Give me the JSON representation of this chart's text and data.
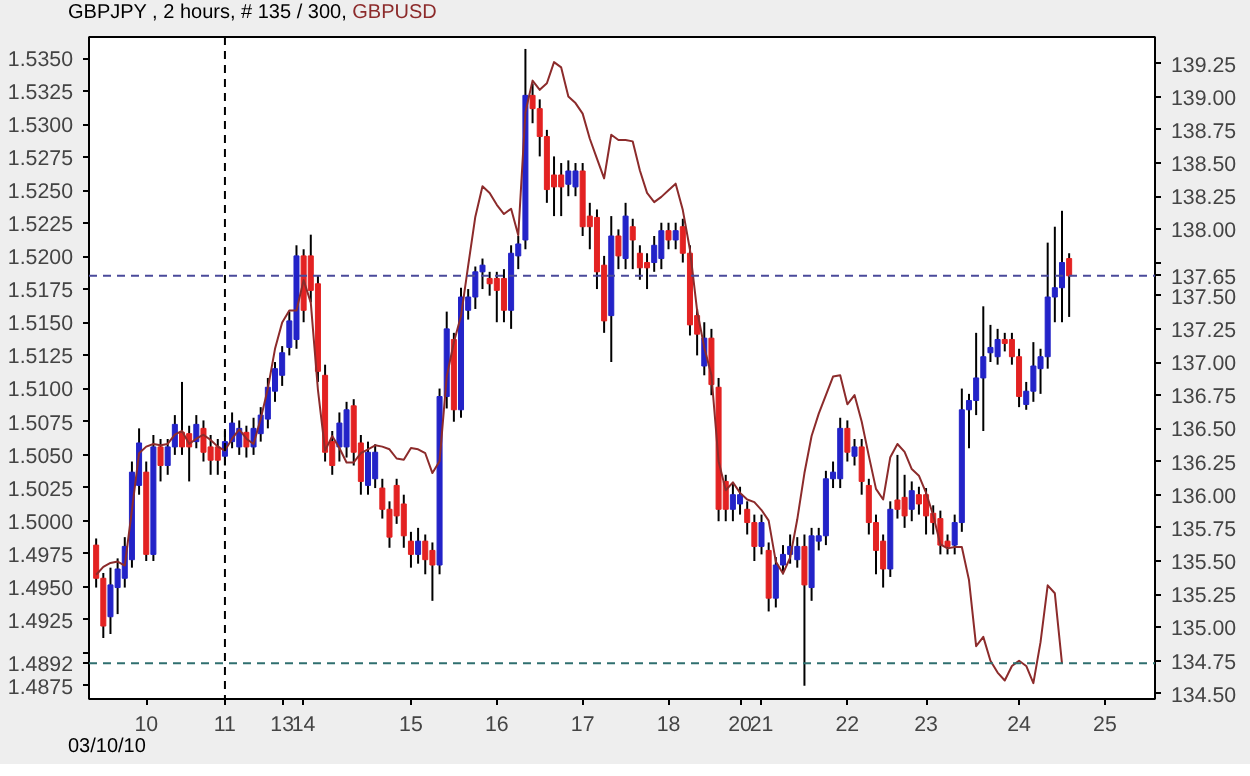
{
  "chart_data": {
    "type": "candlestick",
    "title": "GBPJPY , 2 hours, # 135 / 300,",
    "annotations": [
      "03/10/10"
    ],
    "categories": [
      null,
      null,
      null,
      null,
      null,
      null,
      null,
      "10",
      null,
      null,
      null,
      null,
      null,
      null,
      null,
      null,
      null,
      null,
      "11",
      null,
      null,
      null,
      null,
      null,
      null,
      null,
      "13",
      null,
      null,
      "14",
      null,
      null,
      null,
      null,
      null,
      null,
      null,
      null,
      null,
      null,
      null,
      null,
      null,
      null,
      "15",
      null,
      null,
      null,
      null,
      null,
      null,
      null,
      null,
      null,
      null,
      null,
      "16",
      null,
      null,
      null,
      null,
      null,
      null,
      null,
      null,
      null,
      null,
      null,
      "17",
      null,
      null,
      null,
      null,
      null,
      null,
      null,
      null,
      null,
      null,
      null,
      "18",
      null,
      null,
      null,
      null,
      null,
      null,
      null,
      null,
      null,
      "20",
      null,
      null,
      "21",
      null,
      null,
      null,
      null,
      null,
      null,
      null,
      null,
      null,
      null,
      null,
      "22",
      null,
      null,
      null,
      null,
      null,
      null,
      null,
      null,
      null,
      null,
      "23",
      null,
      null,
      null,
      null,
      null,
      null,
      null,
      null,
      null,
      null,
      null,
      null,
      "24",
      null,
      null,
      null,
      null,
      null,
      null,
      null,
      null,
      null,
      null,
      null,
      "25",
      null,
      null,
      null,
      null,
      null,
      null
    ],
    "ylim": [
      1.4865,
      1.5366
    ],
    "yticks": [
      {
        "value": 1.4875,
        "label": "1.4875"
      },
      {
        "value": 1.49,
        "label": null
      },
      {
        "value": 1.4925,
        "label": "1.4925"
      },
      {
        "value": 1.495,
        "label": "1.4950"
      },
      {
        "value": 1.4975,
        "label": "1.4975"
      },
      {
        "value": 1.5,
        "label": "1.5000"
      },
      {
        "value": 1.5025,
        "label": "1.5025"
      },
      {
        "value": 1.505,
        "label": "1.5050"
      },
      {
        "value": 1.5075,
        "label": "1.5075"
      },
      {
        "value": 1.51,
        "label": "1.5100"
      },
      {
        "value": 1.5125,
        "label": "1.5125"
      },
      {
        "value": 1.515,
        "label": "1.5150"
      },
      {
        "value": 1.5175,
        "label": "1.5175"
      },
      {
        "value": 1.52,
        "label": "1.5200"
      },
      {
        "value": 1.5225,
        "label": "1.5225"
      },
      {
        "value": 1.525,
        "label": "1.5250"
      },
      {
        "value": 1.5275,
        "label": "1.5275"
      },
      {
        "value": 1.53,
        "label": "1.5300"
      },
      {
        "value": 1.5325,
        "label": "1.5325"
      },
      {
        "value": 1.535,
        "label": "1.5350"
      }
    ],
    "y2lim": [
      134.46,
      139.45
    ],
    "y2ticks": [
      {
        "value": 134.5,
        "label": "134.50"
      },
      {
        "value": 134.75,
        "label": "134.75"
      },
      {
        "value": 135,
        "label": "135.00"
      },
      {
        "value": 135.25,
        "label": "135.25"
      },
      {
        "value": 135.5,
        "label": "135.50"
      },
      {
        "value": 135.75,
        "label": "135.75"
      },
      {
        "value": 136,
        "label": "136.00"
      },
      {
        "value": 136.25,
        "label": "136.25"
      },
      {
        "value": 136.5,
        "label": "136.50"
      },
      {
        "value": 136.75,
        "label": "136.75"
      },
      {
        "value": 137,
        "label": "137.00"
      },
      {
        "value": 137.25,
        "label": "137.25"
      },
      {
        "value": 137.5,
        "label": "137.50"
      },
      {
        "value": 137.75,
        "label": null
      },
      {
        "value": 138,
        "label": "138.00"
      },
      {
        "value": 138.25,
        "label": "138.25"
      },
      {
        "value": 138.5,
        "label": "138.50"
      },
      {
        "value": 138.75,
        "label": "138.75"
      },
      {
        "value": 139,
        "label": "139.00"
      },
      {
        "value": 139.25,
        "label": "139.25"
      }
    ],
    "ref_lines": [
      {
        "axis": "x",
        "value": "11",
        "color": "#000000",
        "line_style": "dashed"
      },
      {
        "axis": "y2",
        "value": 137.65,
        "label": "137.65",
        "color": "#4a4a9a",
        "line_style": "dashed"
      },
      {
        "axis": "y",
        "value": 1.4892,
        "label": "1.4892",
        "color": "#2f6f6f",
        "line_style": "dashed"
      }
    ],
    "series": [
      {
        "axis": "y2",
        "color": "#000000",
        "colors": [
          "#e32222",
          "#e32222",
          "#2323c8",
          "#2323c8",
          "#2323c8",
          "#2323c8",
          "#2323c8",
          "#e32222",
          "#2323c8",
          "#e32222",
          "#2323c8",
          "#2323c8",
          "#e32222",
          "#e32222",
          "#2323c8",
          "#e32222",
          "#e32222",
          "#e32222",
          "#2323c8",
          "#2323c8",
          "#2323c8",
          "#e32222",
          "#2323c8",
          "#2323c8",
          "#2323c8",
          "#2323c8",
          "#2323c8",
          "#2323c8",
          "#2323c8",
          "#e32222",
          "#e32222",
          "#e32222",
          "#e32222",
          "#e32222",
          "#2323c8",
          "#2323c8",
          "#e32222",
          "#e32222",
          "#2323c8",
          "#2323c8",
          "#e32222",
          "#e32222",
          "#e32222",
          "#e32222",
          "#e32222",
          "#2323c8",
          "#e32222",
          "#e32222",
          "#2323c8",
          "#2323c8",
          "#e32222",
          "#2323c8",
          "#2323c8",
          "#2323c8",
          "#2323c8",
          "#e32222",
          "#e32222",
          "#e32222",
          "#2323c8",
          "#2323c8",
          "#2323c8",
          "#e32222",
          "#e32222",
          "#e32222",
          "#e32222",
          "#e32222",
          "#2323c8",
          "#2323c8",
          "#e32222",
          "#e32222",
          "#e32222",
          "#e32222",
          "#2323c8",
          "#e32222",
          "#2323c8",
          "#e32222",
          "#e32222",
          "#e32222",
          "#2323c8",
          "#2323c8",
          "#e32222",
          "#2323c8",
          "#e32222",
          "#e32222",
          "#e32222",
          "#2323c8",
          "#e32222",
          "#e32222",
          "#e32222",
          "#2323c8",
          "#2323c8",
          "#e32222",
          "#e32222",
          "#2323c8",
          "#e32222",
          "#2323c8",
          "#2323c8",
          "#2323c8",
          "#2323c8",
          "#e32222",
          "#2323c8",
          "#2323c8",
          "#2323c8",
          "#2323c8",
          "#2323c8",
          "#e32222",
          "#2323c8",
          "#e32222",
          "#e32222",
          "#e32222",
          "#e32222",
          "#2323c8",
          "#e32222",
          "#e32222",
          "#2323c8",
          "#e32222",
          "#e32222",
          "#e32222",
          "#e32222",
          "#e32222",
          "#2323c8",
          "#2323c8",
          "#2323c8",
          "#2323c8",
          "#2323c8",
          "#2323c8",
          "#2323c8",
          "#e32222",
          "#e32222",
          "#e32222",
          "#2323c8",
          "#2323c8",
          "#2323c8",
          "#2323c8",
          "#2323c8",
          "#2323c8",
          "#e32222",
          null,
          null,
          null,
          null,
          null,
          null,
          null,
          null,
          null,
          null,
          null
        ],
        "ohlc": [
          [
            135.62,
            135.67,
            135.3,
            135.37
          ],
          [
            135.37,
            135.41,
            134.92,
            135.01
          ],
          [
            135.08,
            135.45,
            134.95,
            135.32
          ],
          [
            135.3,
            135.52,
            135.1,
            135.44
          ],
          [
            135.37,
            135.68,
            135.3,
            135.61
          ],
          [
            135.51,
            136.25,
            135.45,
            136.17
          ],
          [
            136.07,
            136.5,
            136.0,
            136.39
          ],
          [
            136.17,
            136.25,
            135.5,
            135.55
          ],
          [
            135.55,
            136.45,
            135.5,
            136.36
          ],
          [
            136.36,
            136.42,
            136.1,
            136.22
          ],
          [
            136.22,
            136.42,
            136.15,
            136.36
          ],
          [
            136.36,
            136.6,
            136.3,
            136.53
          ],
          [
            136.47,
            136.85,
            136.3,
            136.36
          ],
          [
            136.46,
            136.52,
            136.1,
            136.36
          ],
          [
            136.4,
            136.6,
            136.35,
            136.53
          ],
          [
            136.5,
            136.56,
            136.25,
            136.32
          ],
          [
            136.36,
            136.45,
            136.15,
            136.26
          ],
          [
            136.36,
            136.42,
            136.15,
            136.26
          ],
          [
            136.29,
            136.48,
            136.22,
            136.4
          ],
          [
            136.4,
            136.62,
            136.35,
            136.54
          ],
          [
            136.36,
            136.56,
            136.3,
            136.5
          ],
          [
            136.47,
            136.52,
            136.28,
            136.36
          ],
          [
            136.36,
            136.58,
            136.3,
            136.5
          ],
          [
            136.46,
            136.66,
            136.4,
            136.6
          ],
          [
            136.57,
            136.88,
            136.5,
            136.81
          ],
          [
            136.78,
            137.0,
            136.7,
            136.95
          ],
          [
            136.9,
            137.12,
            136.82,
            137.07
          ],
          [
            137.11,
            137.38,
            137.05,
            137.31
          ],
          [
            137.17,
            137.88,
            137.1,
            137.8
          ],
          [
            137.8,
            137.85,
            137.3,
            137.39
          ],
          [
            137.8,
            137.96,
            137.45,
            137.54
          ],
          [
            137.59,
            137.65,
            136.85,
            136.93
          ],
          [
            136.9,
            136.98,
            136.25,
            136.32
          ],
          [
            136.4,
            136.48,
            136.15,
            136.22
          ],
          [
            136.36,
            136.62,
            136.25,
            136.54
          ],
          [
            136.36,
            136.7,
            136.28,
            136.64
          ],
          [
            136.67,
            136.72,
            136.22,
            136.32
          ],
          [
            136.39,
            136.45,
            136.0,
            136.1
          ],
          [
            136.07,
            136.4,
            136.0,
            136.32
          ],
          [
            136.12,
            136.38,
            136.05,
            136.32
          ],
          [
            136.05,
            136.12,
            135.82,
            135.89
          ],
          [
            135.89,
            135.95,
            135.6,
            135.68
          ],
          [
            136.07,
            136.12,
            135.78,
            135.84
          ],
          [
            135.93,
            136.0,
            135.6,
            135.69
          ],
          [
            135.65,
            135.72,
            135.45,
            135.55
          ],
          [
            135.55,
            135.75,
            135.48,
            135.65
          ],
          [
            135.65,
            135.7,
            135.4,
            135.51
          ],
          [
            135.58,
            135.64,
            135.2,
            135.47
          ],
          [
            135.47,
            136.8,
            135.4,
            136.74
          ],
          [
            136.74,
            137.38,
            136.65,
            137.25
          ],
          [
            137.17,
            137.22,
            136.55,
            136.64
          ],
          [
            136.64,
            137.56,
            136.58,
            137.49
          ],
          [
            137.39,
            137.55,
            137.32,
            137.49
          ],
          [
            137.49,
            137.72,
            137.4,
            137.68
          ],
          [
            137.68,
            137.78,
            137.55,
            137.73
          ],
          [
            137.63,
            137.68,
            137.5,
            137.59
          ],
          [
            137.63,
            137.68,
            137.3,
            137.54
          ],
          [
            137.63,
            137.7,
            137.3,
            137.39
          ],
          [
            137.39,
            137.88,
            137.25,
            137.82
          ],
          [
            137.8,
            137.95,
            137.7,
            137.89
          ],
          [
            137.92,
            139.36,
            137.85,
            139.01
          ],
          [
            139.01,
            139.1,
            138.8,
            138.91
          ],
          [
            138.91,
            138.98,
            138.55,
            138.7
          ],
          [
            138.7,
            138.75,
            138.2,
            138.3
          ],
          [
            138.41,
            138.55,
            138.1,
            138.32
          ],
          [
            138.41,
            138.5,
            138.1,
            138.32
          ],
          [
            138.34,
            138.52,
            138.25,
            138.44
          ],
          [
            138.32,
            138.5,
            138.25,
            138.44
          ],
          [
            138.44,
            138.5,
            137.95,
            138.02
          ],
          [
            138.1,
            138.2,
            137.85,
            138.02
          ],
          [
            138.09,
            138.15,
            137.55,
            137.68
          ],
          [
            137.73,
            137.8,
            137.22,
            137.31
          ],
          [
            137.35,
            138.1,
            137.0,
            137.95
          ],
          [
            137.95,
            138.0,
            137.7,
            137.8
          ],
          [
            137.78,
            138.2,
            137.7,
            138.1
          ],
          [
            138.02,
            138.08,
            137.7,
            137.92
          ],
          [
            137.82,
            137.88,
            137.62,
            137.71
          ],
          [
            137.75,
            137.82,
            137.55,
            137.71
          ],
          [
            137.75,
            137.95,
            137.68,
            137.88
          ],
          [
            137.78,
            138.05,
            137.7,
            137.99
          ],
          [
            137.99,
            138.05,
            137.85,
            137.92
          ],
          [
            137.92,
            138.05,
            137.85,
            137.99
          ],
          [
            138.02,
            138.08,
            137.75,
            137.82
          ],
          [
            137.82,
            137.88,
            137.2,
            137.28
          ],
          [
            137.35,
            137.4,
            137.05,
            137.21
          ],
          [
            136.97,
            137.3,
            136.9,
            137.18
          ],
          [
            137.18,
            137.25,
            136.75,
            136.83
          ],
          [
            136.81,
            136.88,
            135.8,
            135.89
          ],
          [
            136.1,
            136.15,
            135.8,
            135.89
          ],
          [
            135.89,
            136.08,
            135.8,
            136.0
          ],
          [
            135.93,
            136.06,
            135.85,
            136.0
          ],
          [
            135.89,
            135.95,
            135.7,
            135.79
          ],
          [
            135.79,
            135.85,
            135.5,
            135.61
          ],
          [
            135.61,
            135.85,
            135.55,
            135.79
          ],
          [
            135.58,
            135.64,
            135.12,
            135.22
          ],
          [
            135.22,
            135.53,
            135.15,
            135.47
          ],
          [
            135.47,
            135.62,
            135.4,
            135.55
          ],
          [
            135.55,
            135.7,
            135.48,
            135.61
          ],
          [
            135.51,
            135.68,
            135.45,
            135.61
          ],
          [
            135.61,
            135.7,
            134.56,
            135.32
          ],
          [
            135.3,
            135.75,
            135.2,
            135.69
          ],
          [
            135.65,
            135.75,
            135.58,
            135.69
          ],
          [
            135.69,
            136.18,
            135.62,
            136.12
          ],
          [
            136.12,
            136.25,
            136.05,
            136.17
          ],
          [
            136.12,
            136.58,
            136.05,
            136.5
          ],
          [
            136.5,
            136.56,
            136.25,
            136.32
          ],
          [
            136.29,
            136.42,
            136.22,
            136.36
          ],
          [
            136.36,
            136.42,
            136.0,
            136.1
          ],
          [
            136.07,
            136.12,
            135.7,
            135.79
          ],
          [
            135.79,
            135.85,
            135.4,
            135.58
          ],
          [
            135.65,
            135.7,
            135.3,
            135.44
          ],
          [
            135.44,
            135.95,
            135.38,
            135.89
          ],
          [
            135.96,
            136.3,
            135.82,
            135.89
          ],
          [
            135.98,
            136.15,
            135.75,
            135.84
          ],
          [
            135.89,
            136.1,
            135.8,
            136.03
          ],
          [
            136.0,
            136.06,
            135.85,
            135.93
          ],
          [
            136.0,
            136.05,
            135.7,
            135.84
          ],
          [
            135.86,
            135.92,
            135.7,
            135.79
          ],
          [
            135.82,
            135.88,
            135.55,
            135.62
          ],
          [
            135.65,
            135.7,
            135.55,
            135.61
          ],
          [
            135.62,
            135.85,
            135.55,
            135.79
          ],
          [
            135.79,
            136.8,
            135.72,
            136.64
          ],
          [
            136.64,
            136.76,
            136.35,
            136.71
          ],
          [
            136.71,
            137.22,
            136.6,
            136.88
          ],
          [
            136.88,
            137.42,
            136.48,
            137.04
          ],
          [
            137.07,
            137.28,
            137.0,
            137.11
          ],
          [
            137.04,
            137.25,
            136.98,
            137.17
          ],
          [
            137.17,
            137.22,
            137.08,
            137.14
          ],
          [
            137.17,
            137.22,
            136.98,
            137.04
          ],
          [
            137.04,
            137.1,
            136.66,
            136.74
          ],
          [
            136.68,
            136.85,
            136.64,
            136.78
          ],
          [
            136.78,
            137.15,
            136.7,
            136.97
          ],
          [
            136.95,
            137.1,
            136.76,
            137.04
          ],
          [
            137.04,
            137.9,
            136.95,
            137.49
          ],
          [
            137.49,
            138.02,
            137.3,
            137.56
          ],
          [
            137.56,
            138.14,
            137.3,
            137.75
          ],
          [
            137.78,
            137.82,
            137.34,
            137.65
          ],
          null,
          null,
          null,
          null,
          null,
          null,
          null,
          null,
          null,
          null,
          null
        ]
      },
      {
        "type": "line",
        "name": "GBPUSD",
        "color": "#8c2b2b",
        "values": [
          1.4959,
          1.4965,
          1.4968,
          1.4969,
          1.4966,
          1.5008,
          1.5051,
          1.5056,
          1.5058,
          1.5057,
          1.5058,
          1.5065,
          1.5068,
          1.5058,
          1.5062,
          1.5065,
          1.5061,
          1.5056,
          1.5053,
          1.5062,
          1.5069,
          1.5062,
          1.5058,
          1.5077,
          1.51,
          1.513,
          1.515,
          1.5159,
          1.5159,
          1.5182,
          1.5165,
          1.5099,
          1.5053,
          1.5064,
          1.5055,
          1.5044,
          1.5044,
          1.5051,
          1.5054,
          1.5057,
          1.5056,
          1.5054,
          1.5047,
          1.5046,
          1.5055,
          1.5054,
          1.5051,
          1.5036,
          1.5045,
          1.5109,
          1.5135,
          1.5155,
          1.5193,
          1.523,
          1.5253,
          1.5248,
          1.5239,
          1.5232,
          1.5236,
          1.5216,
          1.5309,
          1.5333,
          1.5326,
          1.5331,
          1.5347,
          1.5343,
          1.5321,
          1.5316,
          1.5308,
          1.5289,
          1.5274,
          1.5259,
          1.5292,
          1.5288,
          1.5288,
          1.5287,
          1.5265,
          1.5248,
          1.5241,
          1.5245,
          1.525,
          1.5255,
          1.5235,
          1.5205,
          1.5159,
          1.5131,
          1.511,
          1.5045,
          1.5023,
          1.5029,
          1.5021,
          1.5016,
          1.5014,
          1.5008,
          1.5,
          1.4969,
          1.496,
          1.4972,
          1.5001,
          1.5036,
          1.5064,
          1.5081,
          1.5095,
          1.5109,
          1.511,
          1.5088,
          1.5095,
          1.5075,
          1.5049,
          1.5024,
          1.5016,
          1.5048,
          1.5058,
          1.5052,
          1.5039,
          1.5034,
          1.5021,
          1.5004,
          1.4982,
          1.4979,
          1.498,
          1.498,
          1.4955,
          1.4905,
          1.4912,
          1.4894,
          1.4885,
          1.4879,
          1.489,
          1.4894,
          1.489,
          1.4877,
          1.4908,
          1.4951,
          1.4945,
          1.4892,
          null,
          null,
          null,
          null,
          null,
          null,
          null,
          null,
          null,
          null,
          null,
          null
        ]
      }
    ]
  }
}
